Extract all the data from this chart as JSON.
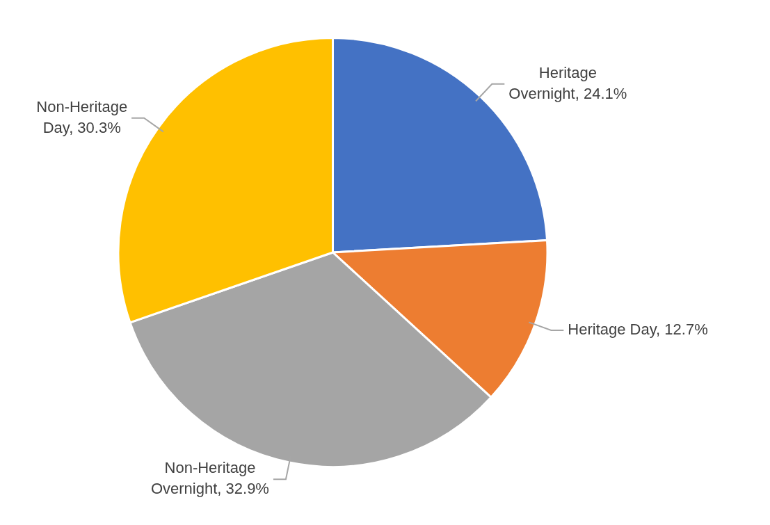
{
  "chart_data": {
    "type": "pie",
    "categories": [
      "Heritage Overnight",
      "Heritage Day",
      "Non-Heritage Overnight",
      "Non-Heritage Day"
    ],
    "values": [
      24.1,
      12.7,
      32.9,
      30.3
    ],
    "value_labels": [
      "24.1%",
      "12.7%",
      "32.9%",
      "30.3%"
    ],
    "colors": [
      "#4472c4",
      "#ed7d31",
      "#a5a5a5",
      "#ffc000"
    ],
    "legend": false
  }
}
